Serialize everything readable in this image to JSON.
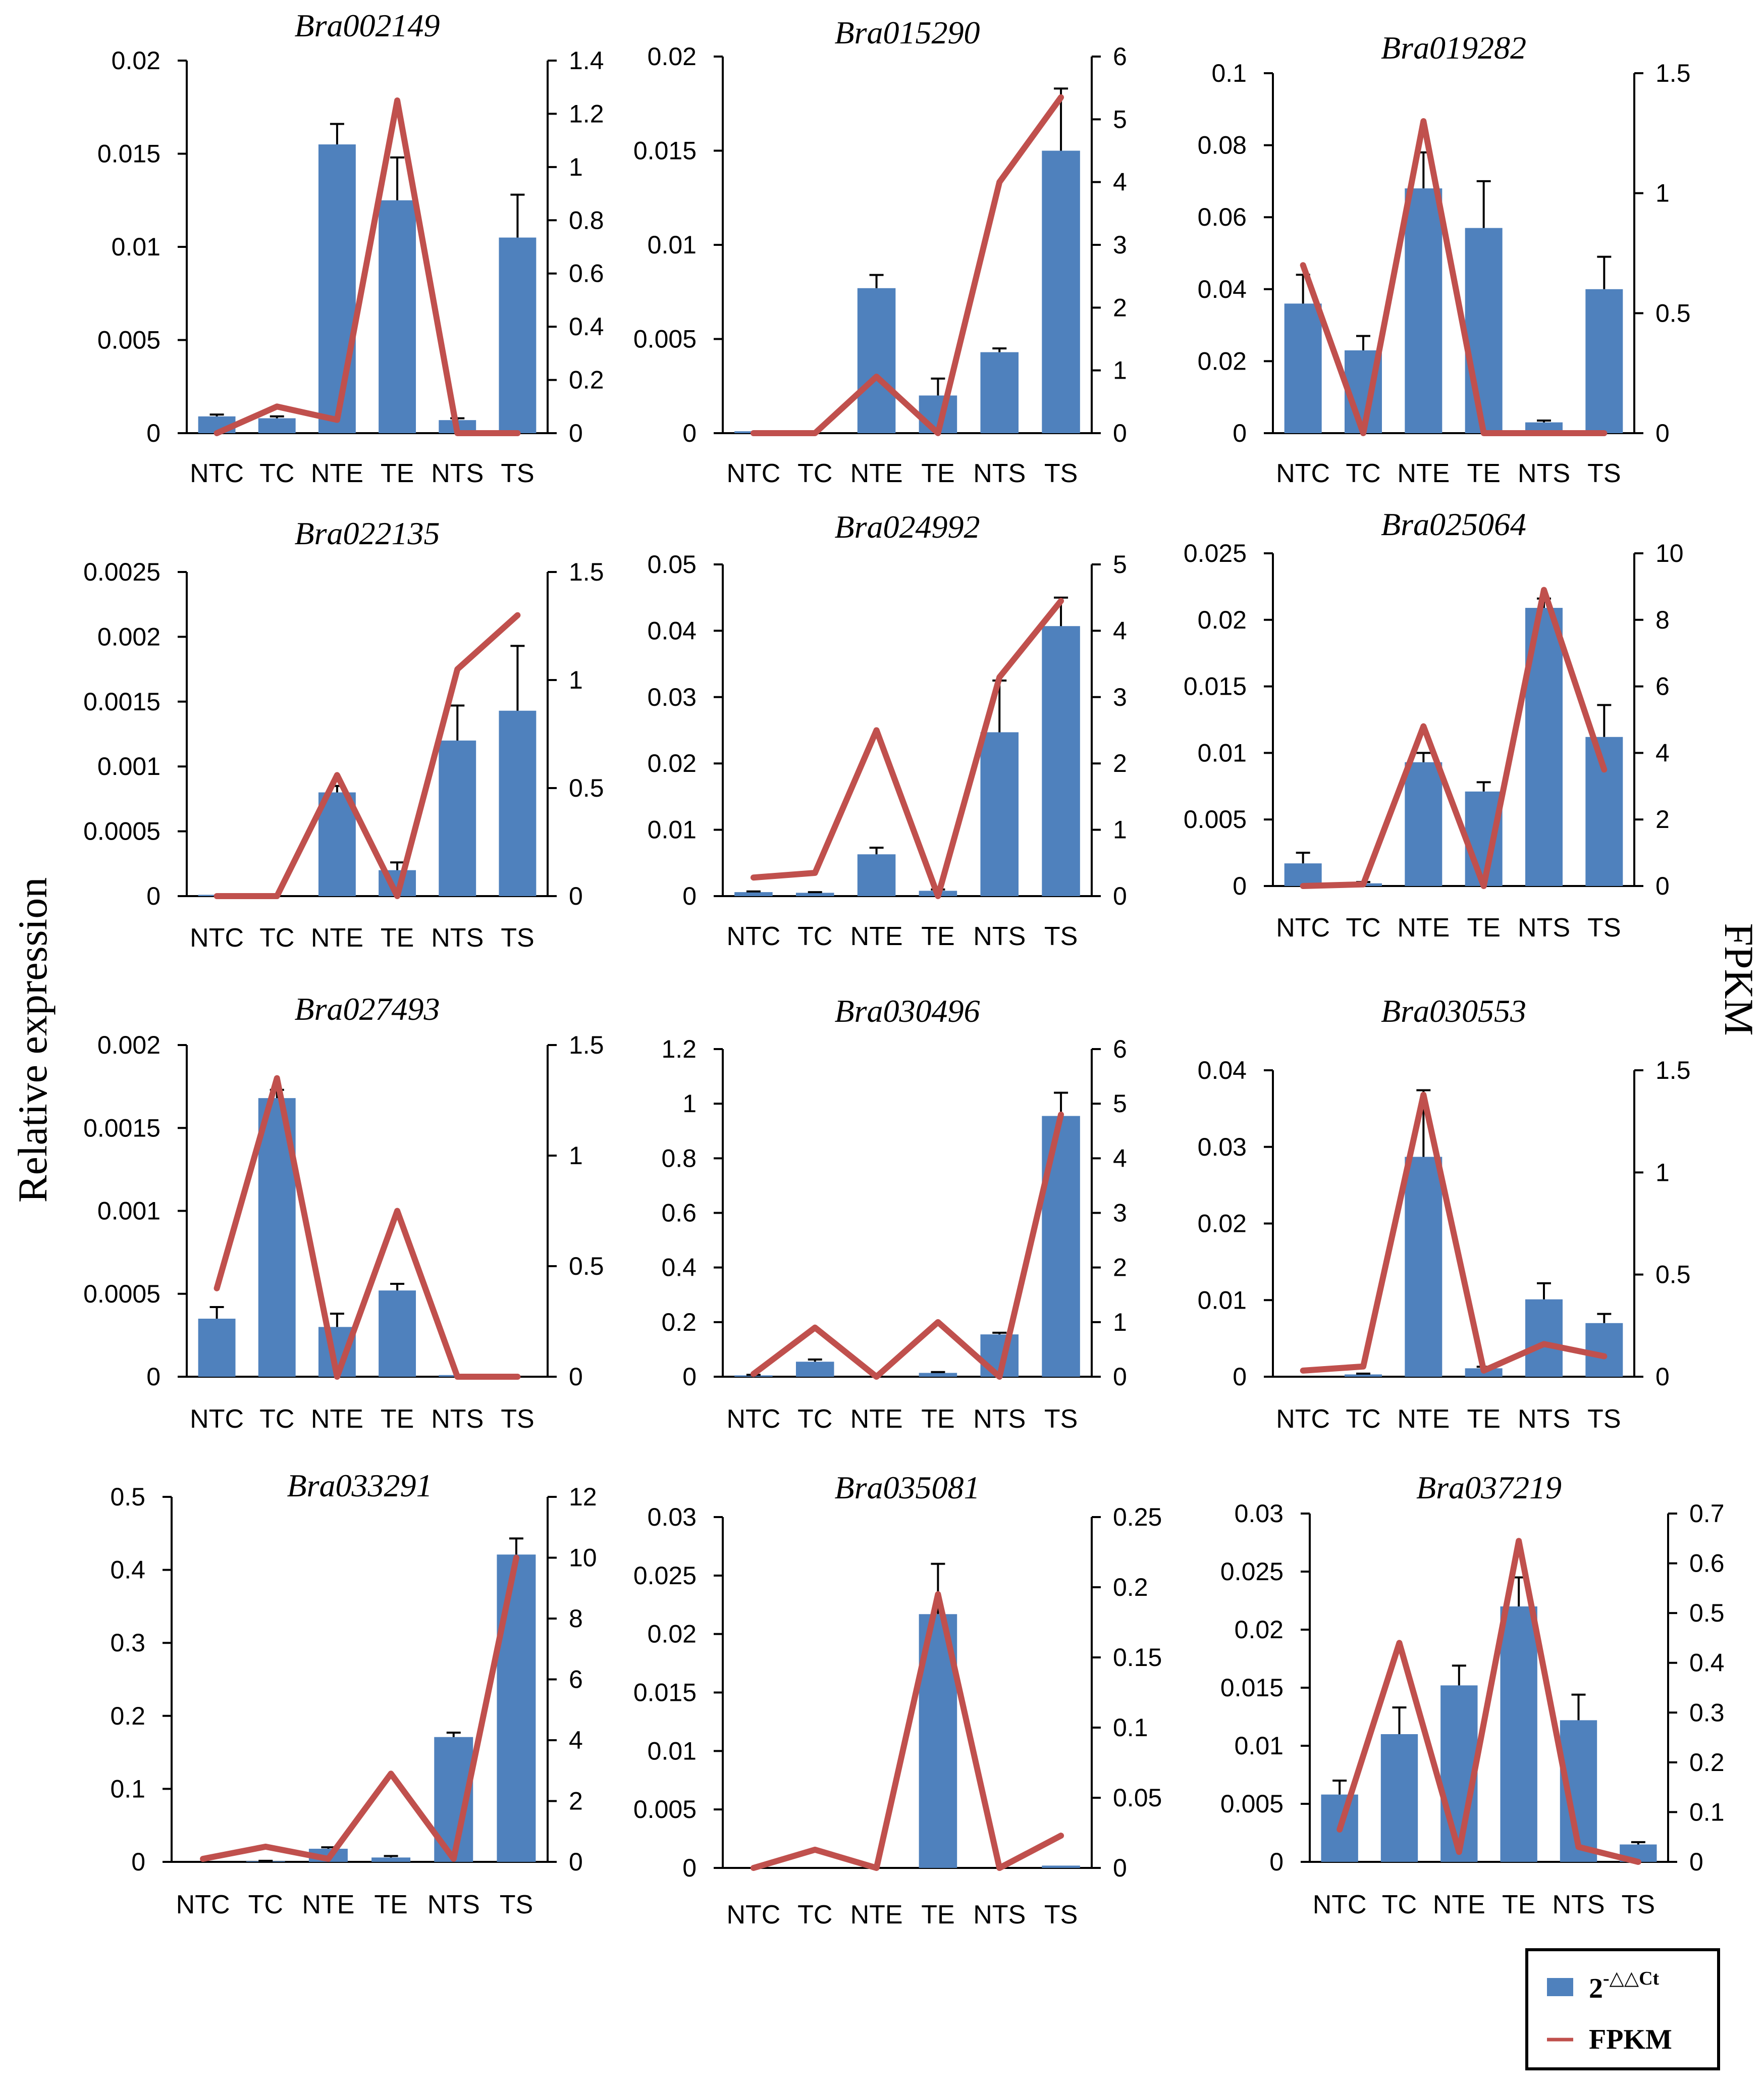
{
  "figure": {
    "left_axis_title": "Relative expression",
    "right_axis_title": "FPKM",
    "legend": {
      "bar_label_base": "2",
      "bar_label_sup": "-△△Ct",
      "line_label": "FPKM"
    },
    "colors": {
      "bar": "#4f81bd",
      "line": "#c0504d",
      "error": "#000000",
      "axis": "#000000"
    }
  },
  "chart_data": [
    {
      "type": "bar+line",
      "title": "Bra002149",
      "categories": [
        "NTC",
        "TC",
        "NTE",
        "TE",
        "NTS",
        "TS"
      ],
      "series": [
        {
          "name": "2-△△Ct",
          "axis": "left",
          "values": [
            0.0009,
            0.0008,
            0.0155,
            0.0125,
            0.0007,
            0.0105
          ],
          "errors": [
            0.0001,
            0.0001,
            0.0011,
            0.0023,
            0.0001,
            0.0023
          ]
        },
        {
          "name": "FPKM",
          "axis": "right",
          "values": [
            0.0,
            0.1,
            0.05,
            1.25,
            0.0,
            0.0
          ]
        }
      ],
      "y_left": {
        "ticks": [
          "0",
          "0.005",
          "0.01",
          "0.015",
          "0.02"
        ],
        "range": [
          0,
          0.02
        ]
      },
      "y_right": {
        "ticks": [
          "0",
          "0.2",
          "0.4",
          "0.6",
          "0.8",
          "1",
          "1.2",
          "1.4"
        ],
        "range": [
          0,
          1.4
        ]
      }
    },
    {
      "type": "bar+line",
      "title": "Bra015290",
      "categories": [
        "NTC",
        "TC",
        "NTE",
        "TE",
        "NTS",
        "TS"
      ],
      "series": [
        {
          "name": "2-△△Ct",
          "axis": "left",
          "values": [
            0.0001,
            0.0,
            0.0077,
            0.002,
            0.0043,
            0.015
          ],
          "errors": [
            0.0,
            0.0,
            0.0007,
            0.0009,
            0.0002,
            0.0033
          ]
        },
        {
          "name": "FPKM",
          "axis": "right",
          "values": [
            0.0,
            0.0,
            0.9,
            0.0,
            4.0,
            5.35
          ]
        }
      ],
      "y_left": {
        "ticks": [
          "0",
          "0.005",
          "0.01",
          "0.015",
          "0.02"
        ],
        "range": [
          0,
          0.02
        ]
      },
      "y_right": {
        "ticks": [
          "0",
          "1",
          "2",
          "3",
          "4",
          "5",
          "6"
        ],
        "range": [
          0,
          6
        ]
      }
    },
    {
      "type": "bar+line",
      "title": "Bra019282",
      "categories": [
        "NTC",
        "TC",
        "NTE",
        "TE",
        "NTS",
        "TS"
      ],
      "series": [
        {
          "name": "2-△△Ct",
          "axis": "left",
          "values": [
            0.036,
            0.023,
            0.068,
            0.057,
            0.003,
            0.04
          ],
          "errors": [
            0.008,
            0.004,
            0.01,
            0.013,
            0.0005,
            0.009
          ]
        },
        {
          "name": "FPKM",
          "axis": "right",
          "values": [
            0.7,
            0.0,
            1.3,
            0.0,
            0.0,
            0.0
          ]
        }
      ],
      "y_left": {
        "ticks": [
          "0",
          "0.02",
          "0.04",
          "0.06",
          "0.08",
          "0.1"
        ],
        "range": [
          0,
          0.1
        ]
      },
      "y_right": {
        "ticks": [
          "0",
          "0.5",
          "1",
          "1.5"
        ],
        "range": [
          0,
          1.5
        ]
      }
    },
    {
      "type": "bar+line",
      "title": "Bra022135",
      "categories": [
        "NTC",
        "TC",
        "NTE",
        "TE",
        "NTS",
        "TS"
      ],
      "series": [
        {
          "name": "2-△△Ct",
          "axis": "left",
          "values": [
            1e-05,
            0.0,
            0.0008,
            0.0002,
            0.0012,
            0.00143
          ],
          "errors": [
            0.0,
            0.0,
            5e-05,
            6e-05,
            0.00027,
            0.0005
          ]
        },
        {
          "name": "FPKM",
          "axis": "right",
          "values": [
            0.0,
            0.0,
            0.56,
            0.0,
            1.05,
            1.3
          ]
        }
      ],
      "y_left": {
        "ticks": [
          "0",
          "0.0005",
          "0.001",
          "0.0015",
          "0.002",
          "0.0025"
        ],
        "range": [
          0,
          0.0025
        ]
      },
      "y_right": {
        "ticks": [
          "0",
          "0.5",
          "1",
          "1.5"
        ],
        "range": [
          0,
          1.5
        ]
      }
    },
    {
      "type": "bar+line",
      "title": "Bra024992",
      "categories": [
        "NTC",
        "TC",
        "NTE",
        "TE",
        "NTS",
        "TS"
      ],
      "series": [
        {
          "name": "2-△△Ct",
          "axis": "left",
          "values": [
            0.0006,
            0.0005,
            0.0063,
            0.0008,
            0.0247,
            0.0407
          ],
          "errors": [
            0.0001,
            0.0001,
            0.001,
            0.0002,
            0.0078,
            0.0043
          ]
        },
        {
          "name": "FPKM",
          "axis": "right",
          "values": [
            0.28,
            0.35,
            2.5,
            0.0,
            3.3,
            4.45
          ]
        }
      ],
      "y_left": {
        "ticks": [
          "0",
          "0.01",
          "0.02",
          "0.03",
          "0.04",
          "0.05"
        ],
        "range": [
          0,
          0.05
        ]
      },
      "y_right": {
        "ticks": [
          "0",
          "1",
          "2",
          "3",
          "4",
          "5"
        ],
        "range": [
          0,
          5
        ]
      }
    },
    {
      "type": "bar+line",
      "title": "Bra025064",
      "categories": [
        "NTC",
        "TC",
        "NTE",
        "TE",
        "NTS",
        "TS"
      ],
      "series": [
        {
          "name": "2-△△Ct",
          "axis": "left",
          "values": [
            0.0017,
            0.0002,
            0.0093,
            0.0071,
            0.0209,
            0.0112
          ],
          "errors": [
            0.0008,
            0.0001,
            0.0007,
            0.0007,
            0.0007,
            0.0024
          ]
        },
        {
          "name": "FPKM",
          "axis": "right",
          "values": [
            0.0,
            0.05,
            4.8,
            0.0,
            8.9,
            3.5
          ]
        }
      ],
      "y_left": {
        "ticks": [
          "0",
          "0.005",
          "0.01",
          "0.015",
          "0.02",
          "0.025"
        ],
        "range": [
          0,
          0.025
        ]
      },
      "y_right": {
        "ticks": [
          "0",
          "2",
          "4",
          "6",
          "8",
          "10"
        ],
        "range": [
          0,
          10
        ]
      }
    },
    {
      "type": "bar+line",
      "title": "Bra027493",
      "categories": [
        "NTC",
        "TC",
        "NTE",
        "TE",
        "NTS",
        "TS"
      ],
      "series": [
        {
          "name": "2-△△Ct",
          "axis": "left",
          "values": [
            0.00035,
            0.00168,
            0.0003,
            0.00052,
            1e-05,
            0.0
          ],
          "errors": [
            7e-05,
            5e-05,
            8e-05,
            4e-05,
            0.0,
            0.0
          ]
        },
        {
          "name": "FPKM",
          "axis": "right",
          "values": [
            0.4,
            1.35,
            0.0,
            0.75,
            0.0,
            0.0
          ]
        }
      ],
      "y_left": {
        "ticks": [
          "0",
          "0.0005",
          "0.001",
          "0.0015",
          "0.002"
        ],
        "range": [
          0,
          0.002
        ]
      },
      "y_right": {
        "ticks": [
          "0",
          "0.5",
          "1",
          "1.5"
        ],
        "range": [
          0,
          1.5
        ]
      }
    },
    {
      "type": "bar+line",
      "title": "Bra030496",
      "categories": [
        "NTC",
        "TC",
        "NTE",
        "TE",
        "NTS",
        "TS"
      ],
      "series": [
        {
          "name": "2-△△Ct",
          "axis": "left",
          "values": [
            0.005,
            0.055,
            0.0,
            0.014,
            0.155,
            0.955
          ],
          "errors": [
            0.002,
            0.008,
            0.0,
            0.003,
            0.006,
            0.085
          ]
        },
        {
          "name": "FPKM",
          "axis": "right",
          "values": [
            0.05,
            0.9,
            0.0,
            1.0,
            0.0,
            4.8
          ]
        }
      ],
      "y_left": {
        "ticks": [
          "0",
          "0.2",
          "0.4",
          "0.6",
          "0.8",
          "1",
          "1.2"
        ],
        "range": [
          0,
          1.2
        ]
      },
      "y_right": {
        "ticks": [
          "0",
          "1",
          "2",
          "3",
          "4",
          "5",
          "6"
        ],
        "range": [
          0,
          6
        ]
      }
    },
    {
      "type": "bar+line",
      "title": "Bra030553",
      "categories": [
        "NTC",
        "TC",
        "NTE",
        "TE",
        "NTS",
        "TS"
      ],
      "series": [
        {
          "name": "2-△△Ct",
          "axis": "left",
          "values": [
            0.0,
            0.0003,
            0.0287,
            0.0011,
            0.0101,
            0.007
          ],
          "errors": [
            0.0,
            0.0001,
            0.0087,
            0.0002,
            0.0021,
            0.0012
          ]
        },
        {
          "name": "FPKM",
          "axis": "right",
          "values": [
            0.03,
            0.05,
            1.38,
            0.03,
            0.16,
            0.1
          ]
        }
      ],
      "y_left": {
        "ticks": [
          "0",
          "0.01",
          "0.02",
          "0.03",
          "0.04"
        ],
        "range": [
          0,
          0.04
        ]
      },
      "y_right": {
        "ticks": [
          "0",
          "0.5",
          "1",
          "1.5"
        ],
        "range": [
          0,
          1.5
        ]
      }
    },
    {
      "type": "bar+line",
      "title": "Bra033291",
      "categories": [
        "NTC",
        "TC",
        "NTE",
        "TE",
        "NTS",
        "TS"
      ],
      "series": [
        {
          "name": "2-△△Ct",
          "axis": "left",
          "values": [
            0.0,
            0.001,
            0.018,
            0.006,
            0.171,
            0.421
          ],
          "errors": [
            0.0,
            0.0005,
            0.002,
            0.002,
            0.006,
            0.022
          ]
        },
        {
          "name": "FPKM",
          "axis": "right",
          "values": [
            0.1,
            0.5,
            0.1,
            2.9,
            0.1,
            10.0
          ]
        }
      ],
      "y_left": {
        "ticks": [
          "0",
          "0.1",
          "0.2",
          "0.3",
          "0.4",
          "0.5"
        ],
        "range": [
          0,
          0.5
        ]
      },
      "y_right": {
        "ticks": [
          "0",
          "2",
          "4",
          "6",
          "8",
          "10",
          "12"
        ],
        "range": [
          0,
          12
        ]
      }
    },
    {
      "type": "bar+line",
      "title": "Bra035081",
      "categories": [
        "NTC",
        "TC",
        "NTE",
        "TE",
        "NTS",
        "TS"
      ],
      "series": [
        {
          "name": "2-△△Ct",
          "axis": "left",
          "values": [
            0.0,
            0.0,
            0.0,
            0.0217,
            0.0,
            0.0002
          ],
          "errors": [
            0.0,
            0.0,
            0.0,
            0.0043,
            0.0,
            0.0
          ]
        },
        {
          "name": "FPKM",
          "axis": "right",
          "values": [
            0.0,
            0.013,
            0.0,
            0.195,
            0.0,
            0.023
          ]
        }
      ],
      "y_left": {
        "ticks": [
          "0",
          "0.005",
          "0.01",
          "0.015",
          "0.02",
          "0.025",
          "0.03"
        ],
        "range": [
          0,
          0.03
        ]
      },
      "y_right": {
        "ticks": [
          "0",
          "0.05",
          "0.1",
          "0.15",
          "0.2",
          "0.25"
        ],
        "range": [
          0,
          0.25
        ]
      }
    },
    {
      "type": "bar+line",
      "title": "Bra037219",
      "categories": [
        "NTC",
        "TC",
        "NTE",
        "TE",
        "NTS",
        "TS"
      ],
      "series": [
        {
          "name": "2-△△Ct",
          "axis": "left",
          "values": [
            0.0058,
            0.011,
            0.0152,
            0.022,
            0.0122,
            0.0015
          ],
          "errors": [
            0.0012,
            0.0023,
            0.0017,
            0.0025,
            0.0022,
            0.0002
          ]
        },
        {
          "name": "FPKM",
          "axis": "right",
          "values": [
            0.065,
            0.44,
            0.02,
            0.645,
            0.03,
            0.0
          ]
        }
      ],
      "y_left": {
        "ticks": [
          "0",
          "0.005",
          "0.01",
          "0.015",
          "0.02",
          "0.025",
          "0.03"
        ],
        "range": [
          0,
          0.03
        ]
      },
      "y_right": {
        "ticks": [
          "0",
          "0.1",
          "0.2",
          "0.3",
          "0.4",
          "0.5",
          "0.6",
          "0.7"
        ],
        "range": [
          0,
          0.7
        ]
      }
    }
  ]
}
